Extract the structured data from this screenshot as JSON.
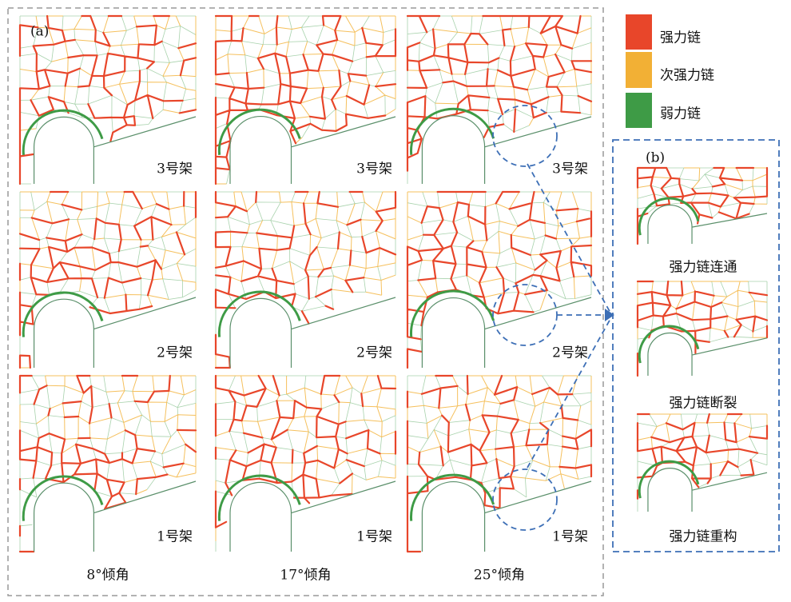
{
  "panel_a": {
    "label": "(a)",
    "rows": [
      "3号架",
      "2号架",
      "1号架"
    ],
    "columns": [
      "8°倾角",
      "17°倾角",
      "25°倾角"
    ]
  },
  "legend": [
    {
      "label": "强力链",
      "color": "#e8462a"
    },
    {
      "label": "次强力链",
      "color": "#f2b035"
    },
    {
      "label": "弱力链",
      "color": "#3e9b46"
    }
  ],
  "panel_b": {
    "label": "(b)",
    "items": [
      "强力链连通",
      "强力链断裂",
      "强力链重构"
    ]
  }
}
